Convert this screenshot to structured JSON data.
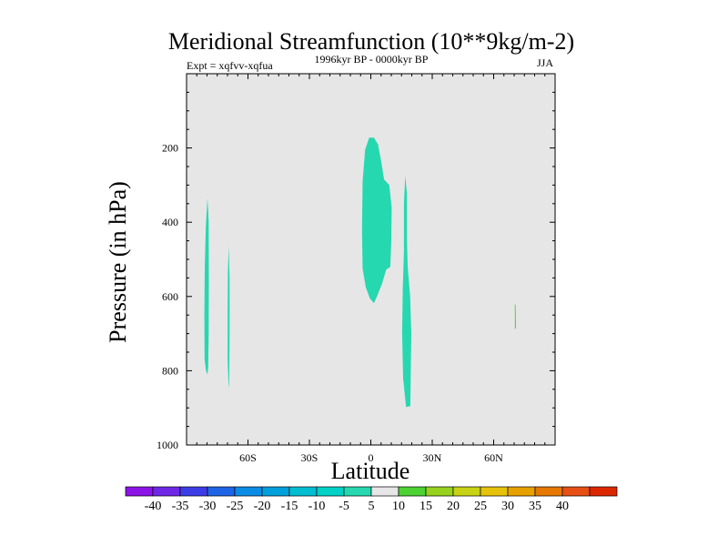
{
  "chart_data": {
    "type": "contour",
    "title": "Meridional Streamfunction (10**9kg/m-2)",
    "subtitle_left": "Expt = xqfvv-xqfua",
    "subtitle_center": "1996kyr BP - 0000kyr BP",
    "subtitle_right": "JJA",
    "xlabel": "Latitude",
    "ylabel": "Pressure (in hPa)",
    "xlim": [
      -90,
      90
    ],
    "ylim": [
      1000,
      0
    ],
    "x_ticks": [
      {
        "value": -60,
        "label": "60S"
      },
      {
        "value": -30,
        "label": "30S"
      },
      {
        "value": 0,
        "label": "0"
      },
      {
        "value": 30,
        "label": "30N"
      },
      {
        "value": 60,
        "label": "60N"
      }
    ],
    "y_ticks": [
      {
        "value": 200,
        "label": "200"
      },
      {
        "value": 400,
        "label": "400"
      },
      {
        "value": 600,
        "label": "600"
      },
      {
        "value": 800,
        "label": "800"
      },
      {
        "value": 1000,
        "label": "1000"
      }
    ],
    "background_color": "#e6e6e6",
    "regions": [
      {
        "name": "region-80s",
        "color": "#26d8b0",
        "points": [
          [
            -80.5,
            800
          ],
          [
            -81.2,
            770
          ],
          [
            -81.3,
            650
          ],
          [
            -81.1,
            520
          ],
          [
            -80.6,
            410
          ],
          [
            -79.8,
            335
          ],
          [
            -79.2,
            395
          ],
          [
            -79.1,
            560
          ],
          [
            -79.2,
            700
          ],
          [
            -79.4,
            790
          ],
          [
            -79.8,
            810
          ]
        ]
      },
      {
        "name": "region-70s",
        "color": "#26d8b0",
        "points": [
          [
            -69.5,
            838
          ],
          [
            -69.9,
            770
          ],
          [
            -69.9,
            640
          ],
          [
            -69.8,
            540
          ],
          [
            -69.4,
            465
          ],
          [
            -69.0,
            550
          ],
          [
            -69.0,
            700
          ],
          [
            -69.1,
            800
          ],
          [
            -69.3,
            845
          ]
        ]
      },
      {
        "name": "region-eq",
        "color": "#26d8b0",
        "points": [
          [
            -0.8,
            172
          ],
          [
            1.5,
            172
          ],
          [
            3.5,
            190
          ],
          [
            5.0,
            235
          ],
          [
            6.5,
            285
          ],
          [
            9.0,
            300
          ],
          [
            10.2,
            360
          ],
          [
            10.0,
            450
          ],
          [
            9.5,
            520
          ],
          [
            7.5,
            528
          ],
          [
            5.5,
            565
          ],
          [
            3.0,
            600
          ],
          [
            1.5,
            618
          ],
          [
            -0.5,
            605
          ],
          [
            -2.5,
            575
          ],
          [
            -4.0,
            525
          ],
          [
            -4.3,
            420
          ],
          [
            -4.0,
            290
          ],
          [
            -2.8,
            205
          ]
        ]
      },
      {
        "name": "region-15n",
        "color": "#26d8b0",
        "points": [
          [
            16.8,
            275
          ],
          [
            17.6,
            320
          ],
          [
            17.6,
            440
          ],
          [
            18.0,
            520
          ],
          [
            19.2,
            600
          ],
          [
            19.8,
            700
          ],
          [
            19.5,
            800
          ],
          [
            19.3,
            895
          ],
          [
            17.2,
            898
          ],
          [
            15.8,
            820
          ],
          [
            15.3,
            700
          ],
          [
            15.6,
            580
          ],
          [
            16.2,
            480
          ],
          [
            16.2,
            350
          ]
        ]
      },
      {
        "name": "region-70n",
        "color": "#4cd232",
        "points": [
          [
            70.3,
            622
          ],
          [
            70.7,
            622
          ],
          [
            70.9,
            685
          ],
          [
            70.4,
            688
          ]
        ]
      }
    ],
    "colorbar": {
      "labels": [
        "-40",
        "-35",
        "-30",
        "-25",
        "-20",
        "-15",
        "-10",
        "-5",
        "5",
        "10",
        "15",
        "20",
        "25",
        "30",
        "35",
        "40"
      ],
      "colors": [
        "#8c14e6",
        "#6e28e6",
        "#3c3ce6",
        "#1e64e6",
        "#0a8ce6",
        "#00a0dc",
        "#00bed2",
        "#00d2c8",
        "#26d8b0",
        "#e6e6e6",
        "#4cd232",
        "#96d21e",
        "#c8d214",
        "#e6c30a",
        "#e6a000",
        "#e67800",
        "#e65014",
        "#dc2800"
      ]
    }
  }
}
